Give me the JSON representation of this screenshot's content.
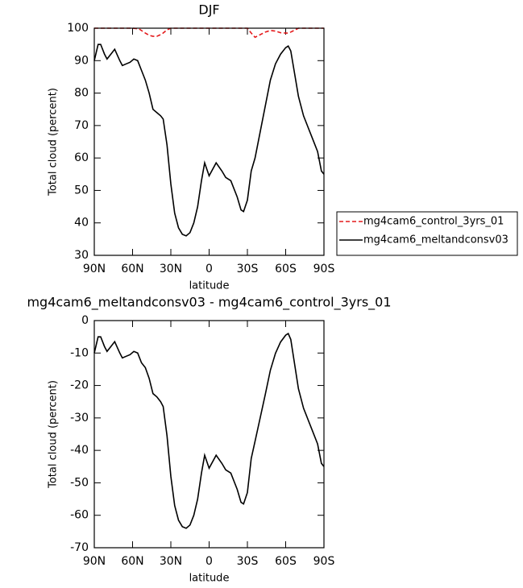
{
  "chart_data": [
    {
      "type": "line",
      "title": "DJF",
      "xlabel": "latitude",
      "ylabel": "Total cloud (percent)",
      "xlim": [
        90,
        -90
      ],
      "xticks": [
        {
          "value": 90,
          "label": "90N"
        },
        {
          "value": 60,
          "label": "60N"
        },
        {
          "value": 30,
          "label": "30N"
        },
        0,
        {
          "value": -30,
          "label": "30S"
        },
        {
          "value": -60,
          "label": "60S"
        },
        {
          "value": -90,
          "label": "90S"
        }
      ],
      "ylim": [
        30,
        100
      ],
      "yticks": [
        30,
        40,
        50,
        60,
        70,
        80,
        90,
        100
      ],
      "legend": "right",
      "series": [
        {
          "name": "mg4cam6_control_3yrs_01",
          "color": "#e41a1c",
          "dash": "dashed",
          "x": [
            90,
            60,
            55,
            50,
            47,
            44,
            41,
            38,
            36,
            33,
            30,
            0,
            -30,
            -33,
            -36,
            -40,
            -44,
            -48,
            -52,
            -56,
            -60,
            -62,
            -64,
            -67,
            -70,
            -90
          ],
          "values": [
            100,
            100,
            99.8,
            98.5,
            97.8,
            97.5,
            97.5,
            98,
            98.5,
            99.5,
            100,
            100,
            100,
            98.5,
            97.2,
            98,
            98.8,
            99.3,
            99.1,
            98.6,
            98.5,
            98.5,
            98.8,
            99.4,
            100,
            100
          ]
        },
        {
          "name": "mg4cam6_meltandconsv03",
          "color": "#000000",
          "dash": "solid",
          "x": [
            90,
            87,
            85,
            82,
            80,
            77,
            74,
            70,
            68,
            65,
            62,
            59,
            56,
            53,
            50,
            47,
            44,
            41,
            38,
            36,
            33,
            30,
            27,
            24,
            21,
            18,
            15,
            12,
            9,
            6,
            3.5,
            0,
            -5.5,
            -10,
            -13,
            -17,
            -22,
            -25,
            -27,
            -30,
            -33,
            -36,
            -40,
            -44,
            -48,
            -52,
            -56,
            -60,
            -62,
            -64,
            -67,
            -70,
            -74,
            -77,
            -81,
            -85,
            -86,
            -88,
            -90
          ],
          "values": [
            90,
            95,
            95,
            92,
            90.5,
            92,
            93.5,
            90,
            88.5,
            89,
            89.5,
            90.5,
            90,
            87,
            84,
            80,
            75,
            74,
            73,
            72,
            64,
            52,
            43,
            38.5,
            36.5,
            36,
            37,
            40,
            45,
            53,
            58.5,
            54.5,
            58.5,
            56,
            54,
            53,
            48,
            44,
            43.5,
            47,
            56,
            60,
            68,
            76,
            84,
            89,
            92,
            94,
            94.5,
            93,
            86,
            79,
            73,
            70,
            66,
            62,
            60,
            56,
            55
          ]
        }
      ]
    },
    {
      "type": "line",
      "title": "mg4cam6_meltandconsv03 - mg4cam6_control_3yrs_01",
      "xlabel": "latitude",
      "ylabel": "Total cloud (percent)",
      "xlim": [
        90,
        -90
      ],
      "xticks": [
        {
          "value": 90,
          "label": "90N"
        },
        {
          "value": 60,
          "label": "60N"
        },
        {
          "value": 30,
          "label": "30N"
        },
        0,
        {
          "value": -30,
          "label": "30S"
        },
        {
          "value": -60,
          "label": "60S"
        },
        {
          "value": -90,
          "label": "90S"
        }
      ],
      "ylim": [
        -70,
        0
      ],
      "yticks": [
        -70,
        -60,
        -50,
        -40,
        -30,
        -20,
        -10,
        0
      ],
      "series": [
        {
          "color": "#000000",
          "dash": "solid",
          "x": [
            90,
            87,
            85,
            82,
            80,
            77,
            74,
            70,
            68,
            65,
            62,
            59,
            56,
            53,
            50,
            47,
            44,
            41,
            38,
            36,
            33,
            30,
            27,
            24,
            21,
            18,
            15,
            12,
            9,
            6,
            3.5,
            0,
            -5.5,
            -10,
            -13,
            -17,
            -22,
            -25,
            -27,
            -30,
            -33,
            -36,
            -40,
            -44,
            -48,
            -52,
            -56,
            -60,
            -62,
            -64,
            -67,
            -70,
            -74,
            -77,
            -81,
            -85,
            -86,
            -88,
            -90
          ],
          "values": [
            -10,
            -5,
            -5,
            -8,
            -9.5,
            -8,
            -6.5,
            -10,
            -11.5,
            -11,
            -10.5,
            -9.5,
            -10,
            -13,
            -14.5,
            -17.8,
            -22.5,
            -23.5,
            -25,
            -26.5,
            -35.5,
            -48,
            -57,
            -61.5,
            -63.5,
            -64,
            -63,
            -60,
            -55,
            -47,
            -41.5,
            -45.5,
            -41.5,
            -44,
            -46,
            -47,
            -52,
            -56,
            -56.5,
            -53,
            -42.5,
            -37.2,
            -30,
            -22.8,
            -15.3,
            -10.1,
            -6.6,
            -4.5,
            -4,
            -5.8,
            -13.4,
            -21,
            -27,
            -30,
            -34,
            -38,
            -40,
            -44,
            -45
          ]
        }
      ]
    }
  ]
}
